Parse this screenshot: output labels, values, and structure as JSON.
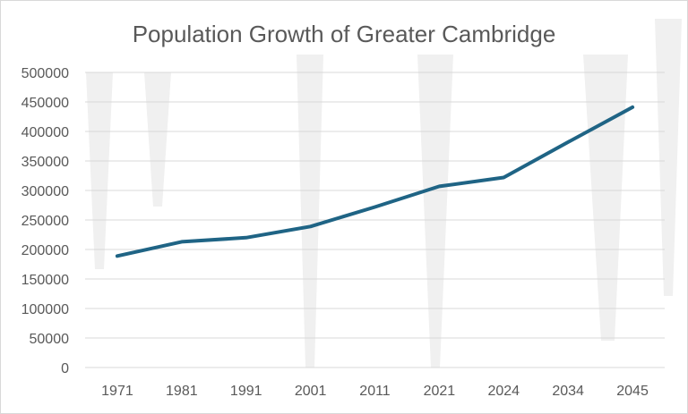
{
  "chart_data": {
    "type": "line",
    "title": "Population Growth  of Greater Cambridge",
    "xlabel": "",
    "ylabel": "",
    "categories": [
      "1971",
      "1981",
      "1991",
      "2001",
      "2011",
      "2021",
      "2024",
      "2034",
      "2045"
    ],
    "series": [
      {
        "values": [
          189000,
          213000,
          220000,
          239000,
          272000,
          307000,
          322000,
          382000,
          441000
        ],
        "color": "#1f6485"
      }
    ],
    "ylim": [
      0,
      500000
    ],
    "yticks": [
      "0",
      "50000",
      "100000",
      "150000",
      "200000",
      "250000",
      "300000",
      "350000",
      "400000",
      "450000",
      "500000"
    ],
    "grid": true,
    "legend": "none"
  }
}
